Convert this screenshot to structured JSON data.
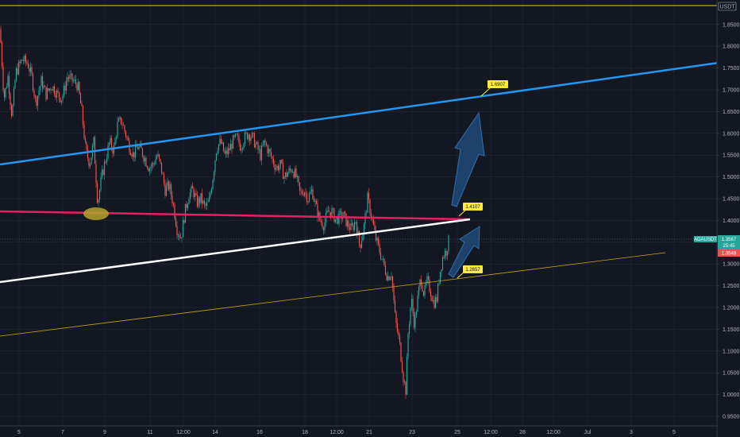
{
  "chart_data": {
    "type": "candlestick",
    "symbol_tag": "ADAUSDT",
    "currency": "USDT",
    "current_price": "1.3567",
    "countdown": "25:45",
    "other_price_label": "1.3548",
    "ylim": [
      0.93,
      1.87
    ],
    "y_ticks": [
      "1.8500",
      "1.8000",
      "1.7500",
      "1.7000",
      "1.6500",
      "1.6000",
      "1.5500",
      "1.5000",
      "1.4500",
      "1.4000",
      "1.3500",
      "1.3000",
      "1.2500",
      "1.2000",
      "1.1500",
      "1.1000",
      "1.0500",
      "1.0000",
      "0.9500"
    ],
    "x_ticks": [
      "5",
      "7",
      "9",
      "11",
      "12:00",
      "14",
      "16",
      "18",
      "12:00",
      "21",
      "23",
      "25",
      "12:00",
      "28",
      "12:00",
      "Jul",
      "3",
      "5"
    ],
    "price_path": [
      [
        0,
        1.84
      ],
      [
        5,
        1.68
      ],
      [
        10,
        1.73
      ],
      [
        15,
        1.64
      ],
      [
        20,
        1.74
      ],
      [
        28,
        1.77
      ],
      [
        35,
        1.76
      ],
      [
        40,
        1.73
      ],
      [
        45,
        1.67
      ],
      [
        52,
        1.72
      ],
      [
        58,
        1.69
      ],
      [
        65,
        1.71
      ],
      [
        72,
        1.69
      ],
      [
        78,
        1.68
      ],
      [
        85,
        1.73
      ],
      [
        92,
        1.72
      ],
      [
        98,
        1.71
      ],
      [
        103,
        1.65
      ],
      [
        108,
        1.56
      ],
      [
        113,
        1.53
      ],
      [
        118,
        1.58
      ],
      [
        123,
        1.44
      ],
      [
        128,
        1.5
      ],
      [
        133,
        1.54
      ],
      [
        138,
        1.58
      ],
      [
        143,
        1.56
      ],
      [
        148,
        1.62
      ],
      [
        153,
        1.63
      ],
      [
        158,
        1.6
      ],
      [
        163,
        1.57
      ],
      [
        168,
        1.55
      ],
      [
        173,
        1.57
      ],
      [
        178,
        1.56
      ],
      [
        183,
        1.54
      ],
      [
        188,
        1.52
      ],
      [
        193,
        1.53
      ],
      [
        198,
        1.55
      ],
      [
        203,
        1.52
      ],
      [
        208,
        1.47
      ],
      [
        213,
        1.48
      ],
      [
        218,
        1.44
      ],
      [
        223,
        1.38
      ],
      [
        228,
        1.36
      ],
      [
        233,
        1.42
      ],
      [
        238,
        1.46
      ],
      [
        243,
        1.47
      ],
      [
        248,
        1.44
      ],
      [
        253,
        1.45
      ],
      [
        258,
        1.43
      ],
      [
        263,
        1.44
      ],
      [
        268,
        1.5
      ],
      [
        273,
        1.57
      ],
      [
        278,
        1.58
      ],
      [
        283,
        1.55
      ],
      [
        288,
        1.56
      ],
      [
        293,
        1.58
      ],
      [
        298,
        1.59
      ],
      [
        303,
        1.57
      ],
      [
        308,
        1.59
      ],
      [
        313,
        1.6
      ],
      [
        318,
        1.59
      ],
      [
        323,
        1.57
      ],
      [
        328,
        1.55
      ],
      [
        333,
        1.58
      ],
      [
        338,
        1.56
      ],
      [
        343,
        1.54
      ],
      [
        348,
        1.52
      ],
      [
        353,
        1.53
      ],
      [
        358,
        1.5
      ],
      [
        363,
        1.51
      ],
      [
        368,
        1.52
      ],
      [
        373,
        1.5
      ],
      [
        378,
        1.46
      ],
      [
        383,
        1.47
      ],
      [
        388,
        1.45
      ],
      [
        393,
        1.47
      ],
      [
        398,
        1.43
      ],
      [
        403,
        1.4
      ],
      [
        408,
        1.39
      ],
      [
        413,
        1.42
      ],
      [
        418,
        1.42
      ],
      [
        423,
        1.4
      ],
      [
        428,
        1.41
      ],
      [
        433,
        1.41
      ],
      [
        438,
        1.39
      ],
      [
        443,
        1.38
      ],
      [
        448,
        1.4
      ],
      [
        453,
        1.34
      ],
      [
        458,
        1.38
      ],
      [
        463,
        1.45
      ],
      [
        468,
        1.41
      ],
      [
        473,
        1.36
      ],
      [
        478,
        1.33
      ],
      [
        483,
        1.3
      ],
      [
        488,
        1.27
      ],
      [
        493,
        1.28
      ],
      [
        498,
        1.17
      ],
      [
        503,
        1.12
      ],
      [
        508,
        1.04
      ],
      [
        511,
        1.01
      ],
      [
        514,
        1.14
      ],
      [
        518,
        1.22
      ],
      [
        522,
        1.16
      ],
      [
        526,
        1.22
      ],
      [
        530,
        1.27
      ],
      [
        534,
        1.23
      ],
      [
        538,
        1.26
      ],
      [
        542,
        1.24
      ],
      [
        546,
        1.21
      ],
      [
        550,
        1.22
      ],
      [
        554,
        1.28
      ],
      [
        558,
        1.32
      ],
      [
        562,
        1.33
      ],
      [
        566,
        1.36
      ]
    ],
    "annotations": [
      {
        "label": "1.6907",
        "price": 1.6907
      },
      {
        "label": "1.4107",
        "price": 1.4107
      },
      {
        "label": "1.2657",
        "price": 1.2657
      }
    ],
    "colors": {
      "background": "#131722",
      "grid": "#2a2e39",
      "up": "#26a69a",
      "down": "#ef5350",
      "blue_line": "#2196f3",
      "magenta_line": "#e91e63",
      "white_line": "#ffffff",
      "gold_line": "#c9a227",
      "yellow_ellipse": "#b5a22a",
      "top_line": "#f0d000",
      "label_bg": "#ffeb3b",
      "arrow_fill": "#1e4a78",
      "arrow_stroke": "#2f6fb0"
    }
  }
}
